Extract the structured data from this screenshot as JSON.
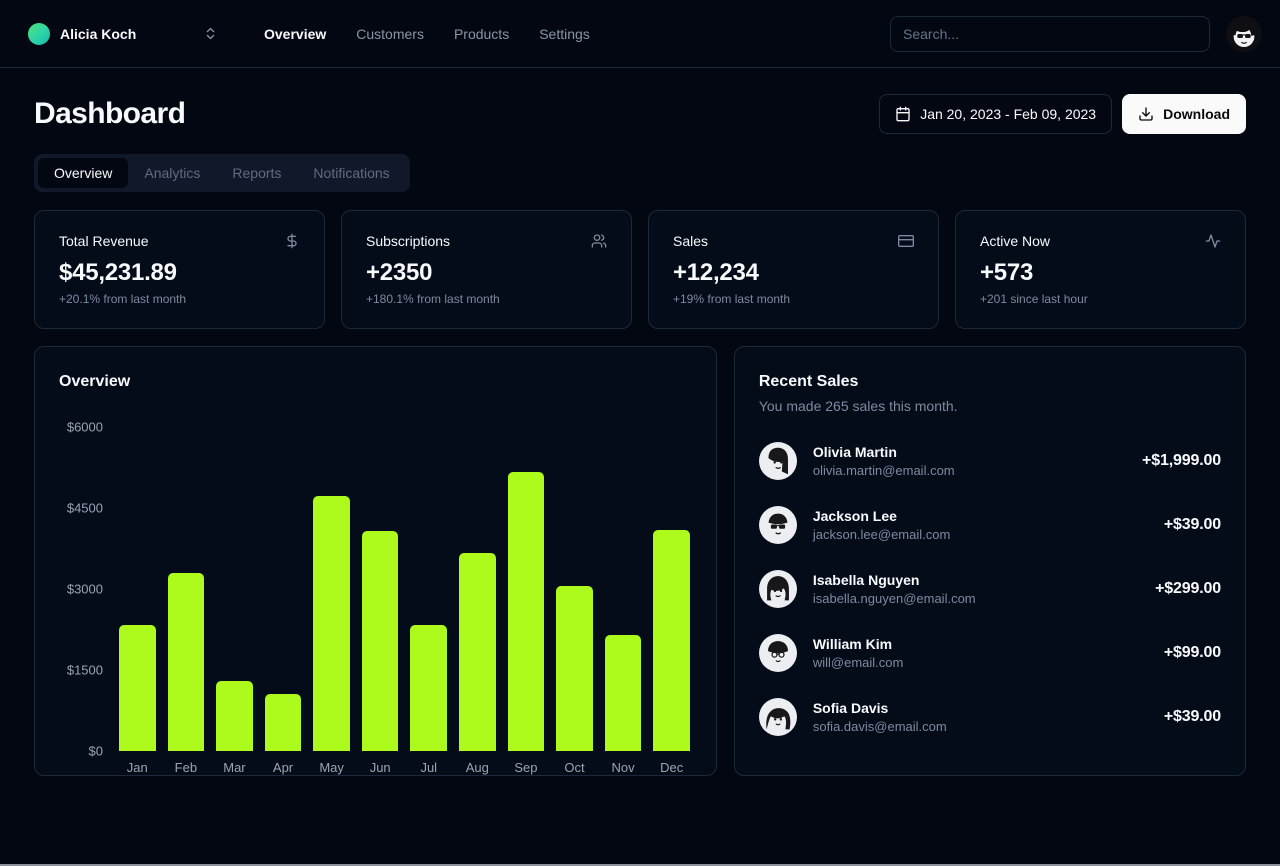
{
  "brand": {
    "team_name": "Alicia Koch"
  },
  "nav": {
    "items": [
      {
        "label": "Overview",
        "active": true
      },
      {
        "label": "Customers",
        "active": false
      },
      {
        "label": "Products",
        "active": false
      },
      {
        "label": "Settings",
        "active": false
      }
    ]
  },
  "search": {
    "placeholder": "Search..."
  },
  "page": {
    "title": "Dashboard"
  },
  "actions": {
    "date_range": "Jan 20, 2023 - Feb 09, 2023",
    "download_label": "Download"
  },
  "tabs": [
    {
      "label": "Overview",
      "active": true
    },
    {
      "label": "Analytics",
      "active": false
    },
    {
      "label": "Reports",
      "active": false
    },
    {
      "label": "Notifications",
      "active": false
    }
  ],
  "stats": [
    {
      "title": "Total Revenue",
      "icon": "dollar-sign-icon",
      "value": "$45,231.89",
      "change": "+20.1% from last month"
    },
    {
      "title": "Subscriptions",
      "icon": "users-icon",
      "value": "+2350",
      "change": "+180.1% from last month"
    },
    {
      "title": "Sales",
      "icon": "credit-card-icon",
      "value": "+12,234",
      "change": "+19% from last month"
    },
    {
      "title": "Active Now",
      "icon": "activity-icon",
      "value": "+573",
      "change": "+201 since last hour"
    }
  ],
  "chart_data": {
    "type": "bar",
    "title": "Overview",
    "categories": [
      "Jan",
      "Feb",
      "Mar",
      "Apr",
      "May",
      "Jun",
      "Jul",
      "Aug",
      "Sep",
      "Oct",
      "Nov",
      "Dec"
    ],
    "values": [
      2340,
      3290,
      1300,
      1050,
      4730,
      4080,
      2330,
      3670,
      5170,
      3050,
      2150,
      4090
    ],
    "ylim": [
      0,
      6000
    ],
    "yticks": [
      {
        "label": "$6000",
        "value": 6000
      },
      {
        "label": "$4500",
        "value": 4500
      },
      {
        "label": "$3000",
        "value": 3000
      },
      {
        "label": "$1500",
        "value": 1500
      },
      {
        "label": "$0",
        "value": 0
      }
    ],
    "xlabel": "",
    "ylabel": "",
    "grid": false,
    "legend": "none",
    "bar_color": "#adfa1d"
  },
  "recent_sales": {
    "title": "Recent Sales",
    "subtitle": "You made 265 sales this month.",
    "items": [
      {
        "name": "Olivia Martin",
        "email": "olivia.martin@email.com",
        "amount": "+$1,999.00"
      },
      {
        "name": "Jackson Lee",
        "email": "jackson.lee@email.com",
        "amount": "+$39.00"
      },
      {
        "name": "Isabella Nguyen",
        "email": "isabella.nguyen@email.com",
        "amount": "+$299.00"
      },
      {
        "name": "William Kim",
        "email": "will@email.com",
        "amount": "+$99.00"
      },
      {
        "name": "Sofia Davis",
        "email": "sofia.davis@email.com",
        "amount": "+$39.00"
      }
    ]
  },
  "colors": {
    "accent": "#adfa1d",
    "background": "#030711",
    "border": "#1d283a"
  }
}
